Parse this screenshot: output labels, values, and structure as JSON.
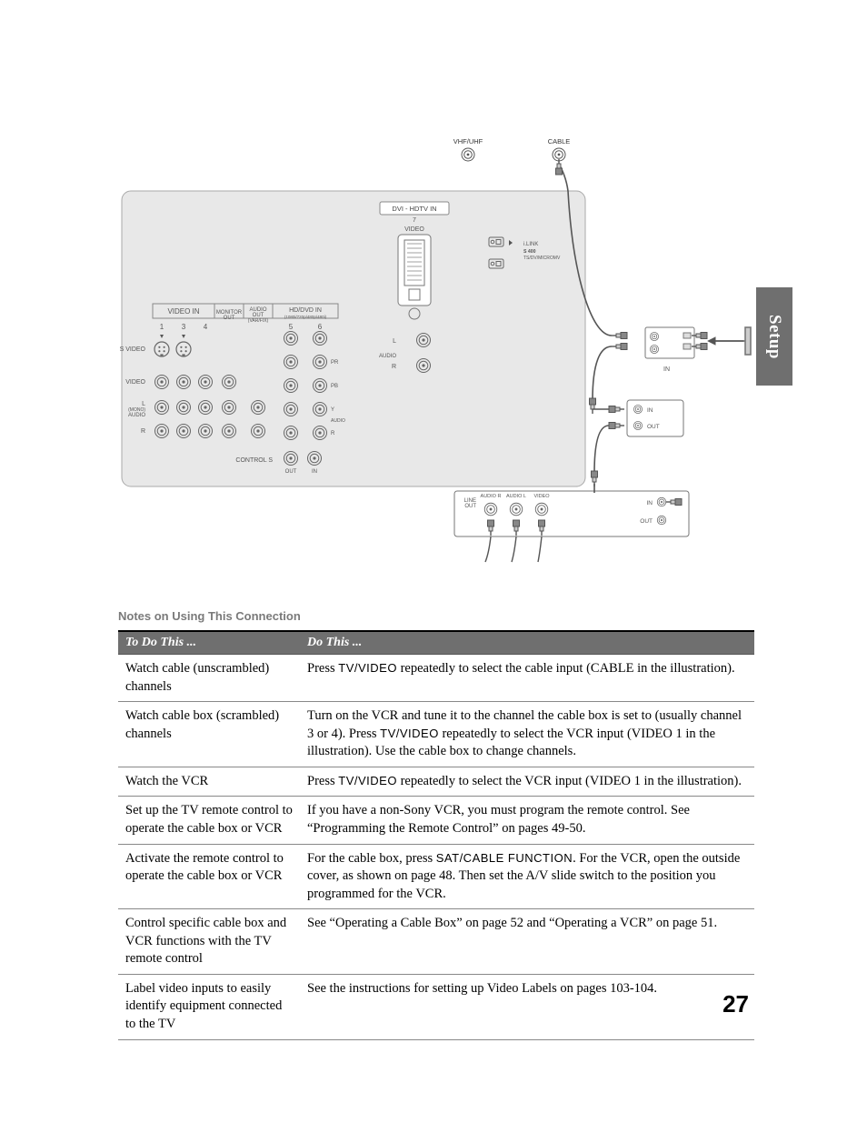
{
  "page_number": "27",
  "side_tab": "Setup",
  "notes_heading": "Notes on Using This Connection",
  "diagram": {
    "antenna_labels": {
      "vhf": "VHF/UHF",
      "cable": "CABLE"
    },
    "main_panel": {
      "video_in_header": "VIDEO IN",
      "video_in_cols": [
        "1",
        "3",
        "4"
      ],
      "monitor_out": "MONITOR\nOUT",
      "audio_out": "AUDIO\nOUT",
      "audio_out_sub": "(VAR/FIX)",
      "hddvd_header": "HD/DVD IN",
      "hddvd_sub": "(1080i/720p/480p/480i)",
      "hddvd_cols": [
        "5",
        "6"
      ],
      "svideo": "S VIDEO",
      "video_row": "VIDEO",
      "audio_l": "L\n(MONO)\nAUDIO",
      "audio_r": "R",
      "audio_label": "AUDIO",
      "control_s": "CONTROL S",
      "control_s_out": "OUT",
      "control_s_in": "IN",
      "hd_pr": "PR",
      "hd_pb": "PB",
      "hd_y": "Y",
      "hd_r": "R",
      "dvi_header": "DVI - HDTV  IN",
      "dvi_num": "7",
      "dvi_video": "VIDEO",
      "dvi_audio_l": "L",
      "dvi_audio": "AUDIO",
      "dvi_audio_r": "R",
      "ilink": "i.LINK",
      "ilink_sub": "S 400",
      "ilink_note": "TS/DV/MICROMV"
    },
    "vcr_panel": {
      "line_out": "LINE\nOUT",
      "audio_r": "AUDIO R",
      "audio_l": "AUDIO L",
      "video": "VIDEO"
    },
    "splitter": {
      "in": "IN",
      "out": "OUT"
    },
    "cablebox": {
      "in": "IN",
      "out": "OUT"
    },
    "colors": {
      "panel_bg": "#e8e8e8",
      "panel_border": "#9a9a9a",
      "text": "#5a5a5a",
      "line": "#777777"
    }
  },
  "table": {
    "header": {
      "a": "To Do This ...",
      "b": "Do This ..."
    },
    "rows": [
      {
        "a": "Watch cable (unscrambled) channels",
        "b_parts": [
          "Press ",
          {
            "sc": "TV/VIDEO"
          },
          " repeatedly to select the cable input (CABLE in the illustration)."
        ]
      },
      {
        "a": "Watch cable box (scrambled) channels",
        "b_parts": [
          "Turn on the VCR and tune it to the channel the cable box is set to (usually channel 3 or 4). Press ",
          {
            "sc": "TV/VIDEO"
          },
          " repeatedly to select the VCR input (VIDEO 1 in the illustration). Use the cable box to change channels."
        ]
      },
      {
        "a": "Watch the VCR",
        "b_parts": [
          "Press ",
          {
            "sc": "TV/VIDEO"
          },
          " repeatedly to select the VCR input (VIDEO 1 in the illustration)."
        ]
      },
      {
        "a": "Set up the TV remote control to operate the cable box or VCR",
        "b_parts": [
          "If you have a non-Sony VCR, you must program the remote control. See “Programming the Remote Control” on pages 49-50."
        ]
      },
      {
        "a": "Activate the remote control to operate the cable box or VCR",
        "b_parts": [
          "For the cable box, press ",
          {
            "sc": "SAT/CABLE FUNCTION"
          },
          ". For the VCR, open the outside cover, as shown on page 48. Then set the A/V slide switch to the position you programmed for the VCR."
        ]
      },
      {
        "a": "Control specific cable box and VCR functions with the TV remote control",
        "b_parts": [
          "See “Operating a Cable Box” on page 52 and “Operating a VCR” on page 51."
        ]
      },
      {
        "a": "Label video inputs to easily identify equipment connected to the TV",
        "b_parts": [
          "See the instructions for setting up Video Labels on pages 103-104."
        ]
      }
    ]
  }
}
